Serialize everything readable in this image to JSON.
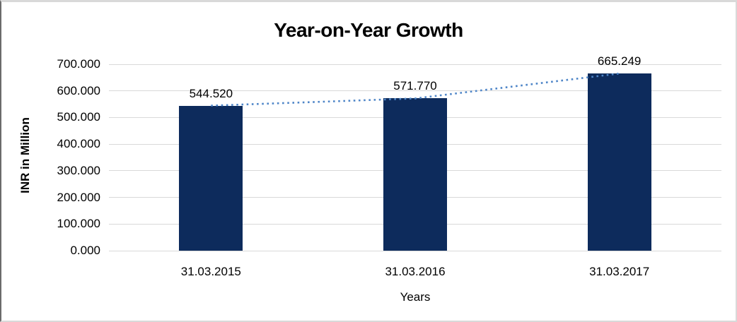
{
  "chart_data": {
    "type": "bar",
    "title": "Year-on-Year Growth",
    "categories": [
      "31.03.2015",
      "31.03.2016",
      "31.03.2017"
    ],
    "values": [
      544.52,
      571.77,
      665.249
    ],
    "value_labels": [
      "544.520",
      "571.770",
      "665.249"
    ],
    "xlabel": "Years",
    "ylabel": "INR in Million",
    "ylim": [
      0,
      700
    ],
    "ytick_step": 100,
    "ytick_labels": [
      "700.000",
      "600.000",
      "500.000",
      "400.000",
      "300.000",
      "200.000",
      "100.000",
      "0.000"
    ],
    "grid": "horizontal",
    "legend": "none",
    "trendline": {
      "style": "dotted",
      "through": "bar-top centers"
    },
    "colors": {
      "bar": "#0d2b5c",
      "trendline": "#4f86c8",
      "gridline": "#d9d9d9",
      "text": "#000000"
    }
  }
}
